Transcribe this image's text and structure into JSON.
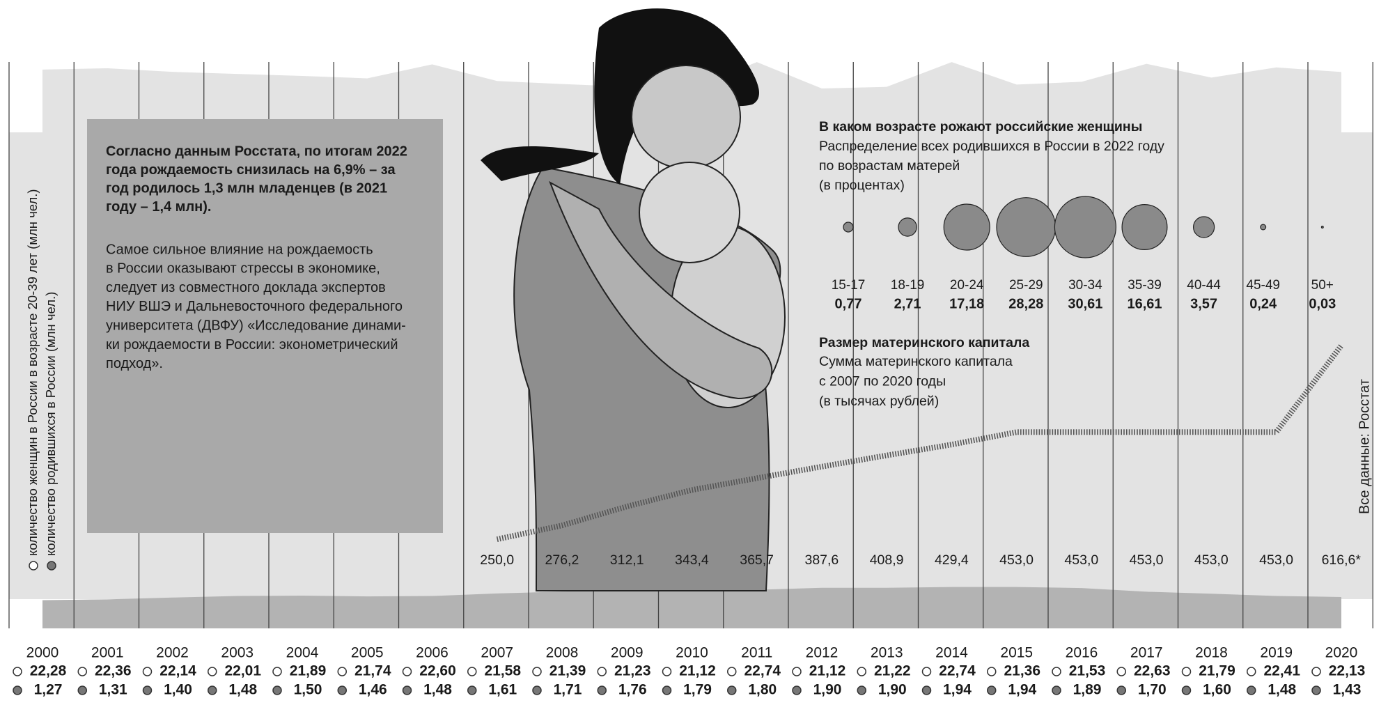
{
  "chart_data": [
    {
      "type": "area",
      "categories": [
        "2000",
        "2001",
        "2002",
        "2003",
        "2004",
        "2005",
        "2006",
        "2007",
        "2008",
        "2009",
        "2010",
        "2011",
        "2012",
        "2013",
        "2014",
        "2015",
        "2016",
        "2017",
        "2018",
        "2019",
        "2020"
      ],
      "series": [
        {
          "name": "количество женщин в России в возрасте 20-39 лет (млн чел.)",
          "color": "#e3e3e3",
          "values": [
            22.28,
            22.36,
            22.14,
            22.01,
            21.89,
            21.74,
            22.6,
            21.58,
            21.39,
            21.23,
            21.12,
            22.74,
            21.12,
            21.22,
            22.74,
            21.36,
            21.53,
            22.63,
            21.79,
            22.41,
            22.13
          ],
          "value_labels": [
            "22,28",
            "22,36",
            "22,14",
            "22,01",
            "21,89",
            "21,74",
            "22,60",
            "21,58",
            "21,39",
            "21,23",
            "21,12",
            "22,74",
            "21,12",
            "21,22",
            "22,74",
            "21,36",
            "21,53",
            "22,63",
            "21,79",
            "22,41",
            "22,13"
          ]
        },
        {
          "name": "количество родившихся в России (млн чел.)",
          "color": "#b3b3b3",
          "axis": "y2",
          "values": [
            1.27,
            1.31,
            1.4,
            1.48,
            1.5,
            1.46,
            1.48,
            1.61,
            1.71,
            1.76,
            1.79,
            1.8,
            1.9,
            1.9,
            1.94,
            1.94,
            1.89,
            1.7,
            1.6,
            1.48,
            1.43
          ],
          "value_labels": [
            "1,27",
            "1,31",
            "1,40",
            "1,48",
            "1,50",
            "1,46",
            "1,48",
            "1,61",
            "1,71",
            "1,76",
            "1,79",
            "1,80",
            "1,90",
            "1,90",
            "1,94",
            "1,94",
            "1,89",
            "1,70",
            "1,60",
            "1,48",
            "1,43"
          ]
        }
      ],
      "ylim": [
        18,
        23
      ],
      "y2lim": [
        0,
        2
      ]
    },
    {
      "type": "bubble",
      "title": "В каком возрасте рожают российские женщины",
      "subtitle": [
        "Распределение всех родившихся в России в 2022 году",
        "по возрастам матерей",
        "(в процентах)"
      ],
      "categories": [
        "15-17",
        "18-19",
        "20-24",
        "25-29",
        "30-34",
        "35-39",
        "40-44",
        "45-49",
        "50+"
      ],
      "values": [
        0.77,
        2.71,
        17.18,
        28.28,
        30.61,
        16.61,
        3.57,
        0.24,
        0.03
      ],
      "value_labels": [
        "0,77",
        "2,71",
        "17,18",
        "28,28",
        "30,61",
        "16,61",
        "3,57",
        "0,24",
        "0,03"
      ],
      "color": "#8a8a8a"
    },
    {
      "type": "line",
      "title": "Размер материнского капитала",
      "subtitle": [
        "Сумма материнского капитала",
        "с 2007 по 2020 годы",
        "(в тысячах рублей)"
      ],
      "x": [
        2007,
        2008,
        2009,
        2010,
        2011,
        2012,
        2013,
        2014,
        2015,
        2016,
        2017,
        2018,
        2019,
        2020
      ],
      "values": [
        250.0,
        276.2,
        312.1,
        343.4,
        365.7,
        387.6,
        408.9,
        429.4,
        453.0,
        453.0,
        453.0,
        453.0,
        453.0,
        616.6
      ],
      "value_labels": [
        "250,0",
        "276,2",
        "312,1",
        "343,4",
        "365,7",
        "387,6",
        "408,9",
        "429,4",
        "453,0",
        "453,0",
        "453,0",
        "453,0",
        "453,0",
        "616,6*"
      ],
      "xlim": [
        1999.5,
        2020.5
      ],
      "ylim": [
        200,
        650
      ],
      "color": "#555555"
    }
  ],
  "text_box": {
    "lead": [
      "Согласно данным Росстата, по итогам 2022",
      "года рождаемость снизилась на 6,9% – за",
      "год родилось 1,3 млн младенцев (в 2021",
      "году – 1,4 млн)."
    ],
    "body": [
      "Самое сильное влияние на рождаемость",
      "в России оказывают стрессы в экономике,",
      "следует из совместного доклада экспертов",
      "НИУ ВШЭ и Дальневосточного федерального",
      "университета (ДВФУ) «Исследование динами-",
      "ки рождаемости в России: эконометрический",
      "подход»."
    ]
  },
  "source": "Все данные: Росстат"
}
